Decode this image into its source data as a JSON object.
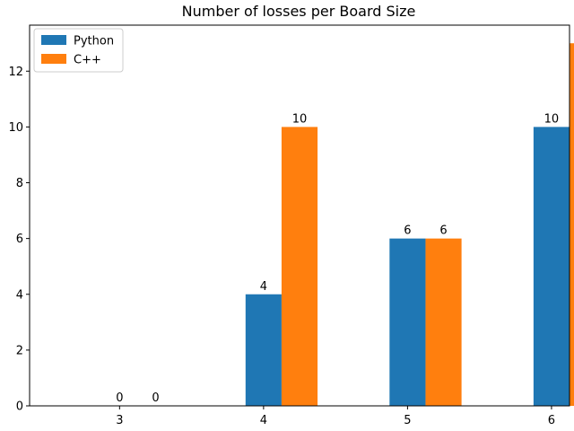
{
  "chart_data": {
    "type": "bar",
    "title": "Number of losses per Board Size",
    "xlabel": "",
    "ylabel": "",
    "categories": [
      "3",
      "4",
      "5",
      "6"
    ],
    "series": [
      {
        "name": "Python",
        "values": [
          0,
          4,
          6,
          10
        ],
        "color": "#1f77b4"
      },
      {
        "name": "C++",
        "values": [
          0,
          10,
          6,
          13
        ],
        "color": "#ff7f0e"
      }
    ],
    "ylim": [
      0,
      13.65
    ],
    "yticks": [
      0,
      2,
      4,
      6,
      8,
      10,
      12
    ],
    "ytick_labels": [
      "0",
      "2",
      "4",
      "6",
      "8",
      "10",
      "12"
    ],
    "value_labels": [
      [
        "0",
        "4",
        "6",
        "10"
      ],
      [
        "0",
        "10",
        "6",
        "13"
      ]
    ],
    "legend_position": "top-left",
    "grid": false
  }
}
